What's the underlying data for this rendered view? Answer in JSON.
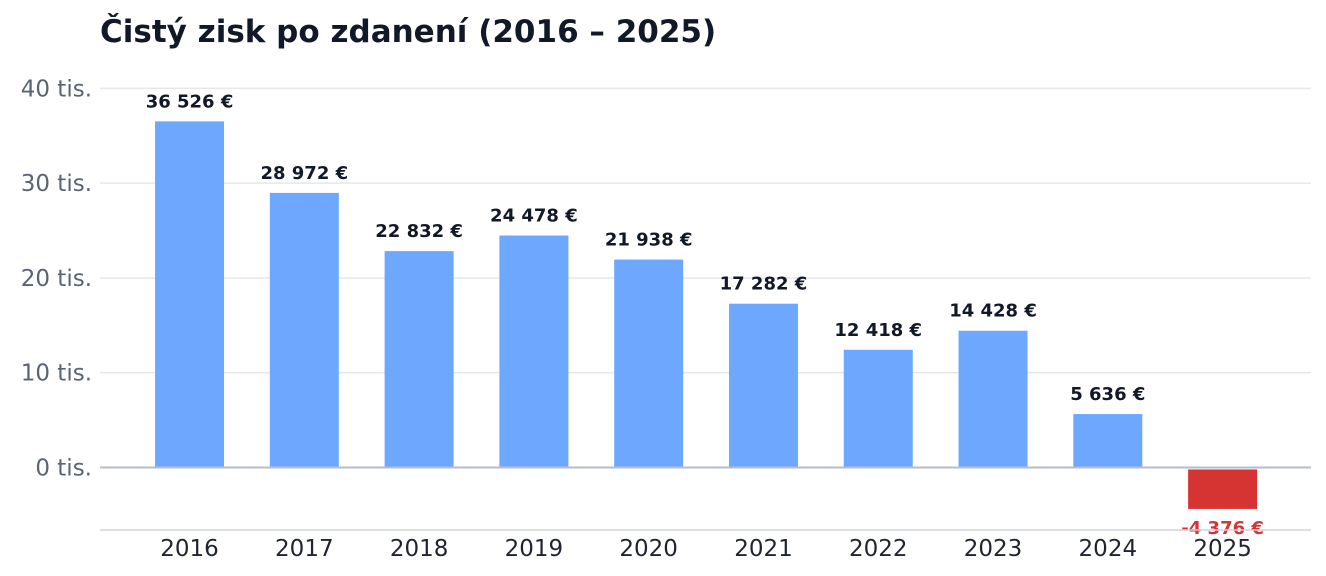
{
  "chart_data": {
    "type": "bar",
    "title": "Čistý zisk po zdanení (2016 – 2025)",
    "xlabel": "",
    "ylabel": "",
    "categories": [
      "2016",
      "2017",
      "2018",
      "2019",
      "2020",
      "2021",
      "2022",
      "2023",
      "2024",
      "2025"
    ],
    "values": [
      36526,
      28972,
      22832,
      24478,
      21938,
      17282,
      12418,
      14428,
      5636,
      -4376
    ],
    "data_labels": [
      "36 526 €",
      "28 972 €",
      "22 832 €",
      "24 478 €",
      "21 938 €",
      "17 282 €",
      "12 418 €",
      "14 428 €",
      "5 636 €",
      "-4 376 €"
    ],
    "yticks": [
      0,
      10000,
      20000,
      30000,
      40000
    ],
    "ytick_labels": [
      "0 tis.",
      "10 tis.",
      "20 tis.",
      "30 tis.",
      "40 tis."
    ],
    "ylim": [
      -6600,
      43000
    ],
    "grid": true,
    "legend": "none",
    "colors": {
      "positive": "#6ea8fe",
      "negative": "#d63333",
      "positive_label": "#111827",
      "negative_label": "#d63333",
      "grid": "#e5e7eb",
      "zero_line": "#b6bec9",
      "bottom_axis": "#cfd4da"
    }
  }
}
